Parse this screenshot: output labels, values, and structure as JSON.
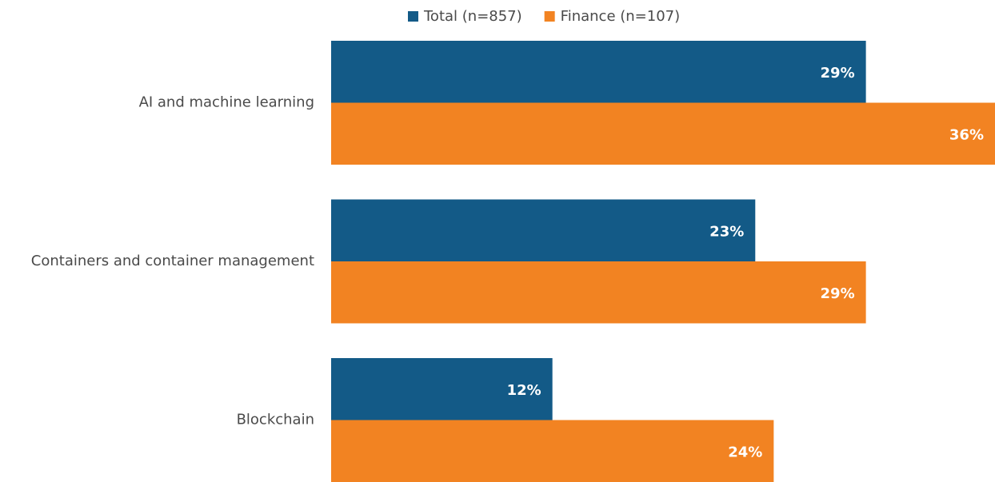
{
  "chart_data": {
    "type": "hbar",
    "categories": [
      "AI and machine learning",
      "Containers and container management",
      "Blockchain"
    ],
    "series": [
      {
        "name": "Total (n=857)",
        "color": "#135a87",
        "values": [
          29,
          23,
          12
        ],
        "value_labels": [
          "29%",
          "23%",
          "12%"
        ]
      },
      {
        "name": "Finance (n=107)",
        "color": "#f28322",
        "values": [
          36,
          29,
          24
        ],
        "value_labels": [
          "36%",
          "29%",
          "24%"
        ]
      }
    ],
    "legend": "top"
  }
}
